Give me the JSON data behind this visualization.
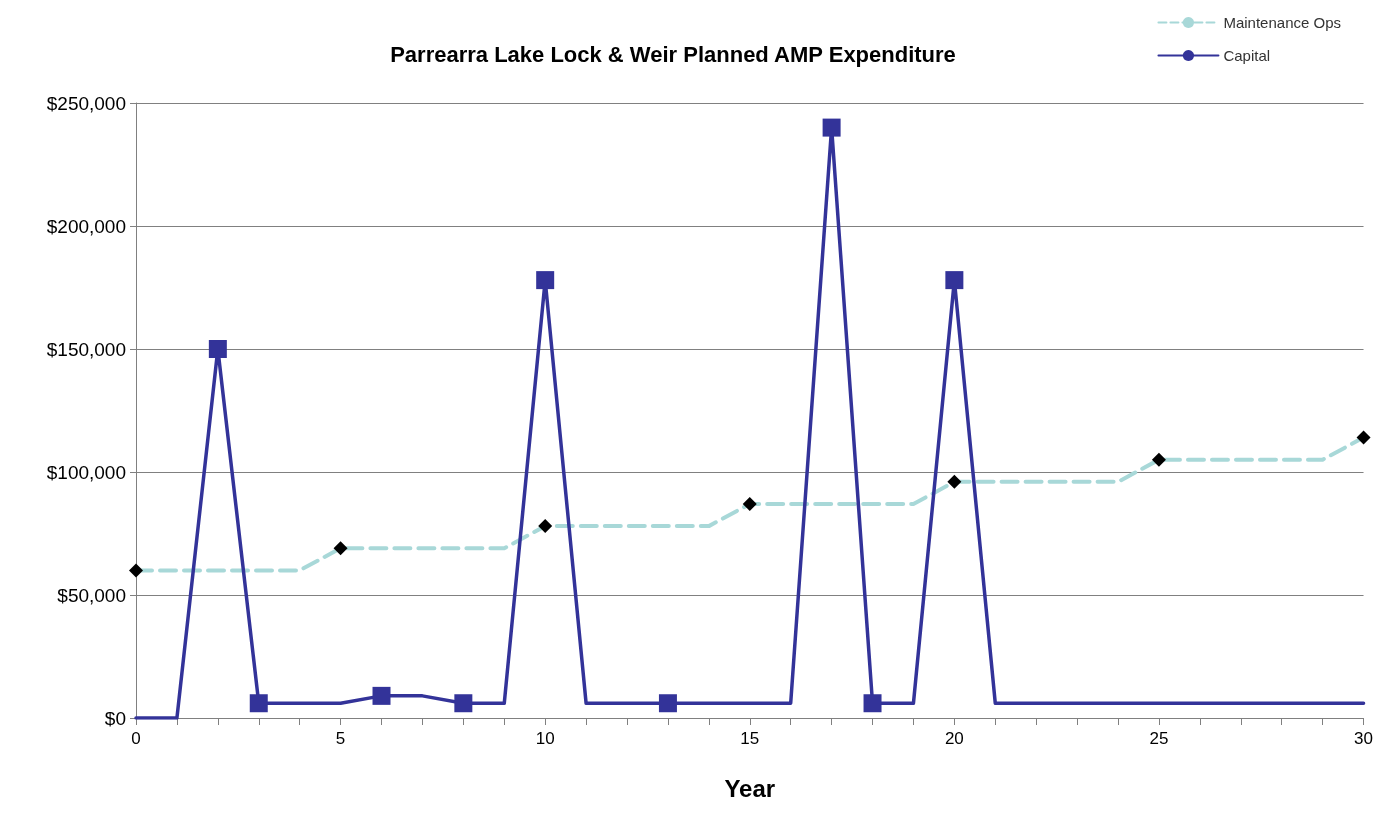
{
  "chart_data": {
    "type": "line",
    "title": "Parrearra Lake Lock & Weir Planned AMP Expenditure",
    "xlabel": "Year",
    "xlim": [
      0,
      30
    ],
    "xticks": [
      0,
      {
        "value": 1,
        "label": null
      },
      {
        "value": 2,
        "label": null
      },
      {
        "value": 3,
        "label": null
      },
      {
        "value": 4,
        "label": null
      },
      5,
      {
        "value": 6,
        "label": null
      },
      {
        "value": 7,
        "label": null
      },
      {
        "value": 8,
        "label": null
      },
      {
        "value": 9,
        "label": null
      },
      10,
      {
        "value": 11,
        "label": null
      },
      {
        "value": 12,
        "label": null
      },
      {
        "value": 13,
        "label": null
      },
      {
        "value": 14,
        "label": null
      },
      15,
      {
        "value": 16,
        "label": null
      },
      {
        "value": 17,
        "label": null
      },
      {
        "value": 18,
        "label": null
      },
      {
        "value": 19,
        "label": null
      },
      20,
      {
        "value": 21,
        "label": null
      },
      {
        "value": 22,
        "label": null
      },
      {
        "value": 23,
        "label": null
      },
      {
        "value": 24,
        "label": null
      },
      25,
      {
        "value": 26,
        "label": null
      },
      {
        "value": 27,
        "label": null
      },
      {
        "value": 28,
        "label": null
      },
      {
        "value": 29,
        "label": null
      },
      30
    ],
    "ylim": [
      0,
      250000
    ],
    "yticks": [
      {
        "value": 0,
        "label": "$0"
      },
      {
        "value": 50000,
        "label": "$50,000"
      },
      {
        "value": 100000,
        "label": "$100,000"
      },
      {
        "value": 150000,
        "label": "$150,000"
      },
      {
        "value": 200000,
        "label": "$200,000"
      },
      {
        "value": 250000,
        "label": "$250,000"
      }
    ],
    "grid": "y",
    "legend": "top right",
    "series": [
      {
        "name": "Maintenance Ops",
        "color": "#a8d8d8",
        "line_style": "dashed",
        "marker": "none",
        "x": [
          0,
          1,
          2,
          3,
          4,
          5,
          6,
          7,
          8,
          9,
          10,
          11,
          12,
          13,
          14,
          15,
          16,
          17,
          18,
          19,
          20,
          21,
          22,
          23,
          24,
          25,
          26,
          27,
          28,
          29,
          30
        ],
        "values": [
          60000,
          60000,
          60000,
          60000,
          60000,
          69000,
          69000,
          69000,
          69000,
          69000,
          78000,
          78000,
          78000,
          78000,
          78000,
          87000,
          87000,
          87000,
          87000,
          87000,
          96000,
          96000,
          96000,
          96000,
          96000,
          105000,
          105000,
          105000,
          105000,
          105000,
          114000
        ]
      },
      {
        "name": "Capital",
        "color": "#333399",
        "line_style": "solid",
        "marker": "none",
        "x": [
          0,
          1,
          2,
          3,
          4,
          5,
          6,
          7,
          8,
          9,
          10,
          11,
          12,
          13,
          14,
          15,
          16,
          17,
          18,
          19,
          20,
          21,
          22,
          23,
          24,
          25,
          26,
          27,
          28,
          29,
          30
        ],
        "values": [
          0,
          0,
          150000,
          6000,
          6000,
          6000,
          9000,
          9000,
          6000,
          6000,
          178000,
          6000,
          6000,
          6000,
          6000,
          6000,
          6000,
          240000,
          6000,
          6000,
          178000,
          6000,
          6000,
          6000,
          6000,
          6000,
          6000,
          6000,
          6000,
          6000,
          6000
        ]
      },
      {
        "type": "scatter",
        "color": "#000000",
        "marker": "diamond",
        "x": [
          0,
          5,
          10,
          15,
          20,
          25,
          30
        ],
        "values": [
          60000,
          69000,
          78000,
          87000,
          96000,
          105000,
          114000
        ]
      },
      {
        "type": "scatter",
        "color": "#333399",
        "marker": "square",
        "x": [
          2,
          3,
          6,
          8,
          10,
          13,
          17,
          18,
          20
        ],
        "values": [
          150000,
          6000,
          9000,
          6000,
          178000,
          6000,
          240000,
          6000,
          178000
        ]
      }
    ]
  }
}
